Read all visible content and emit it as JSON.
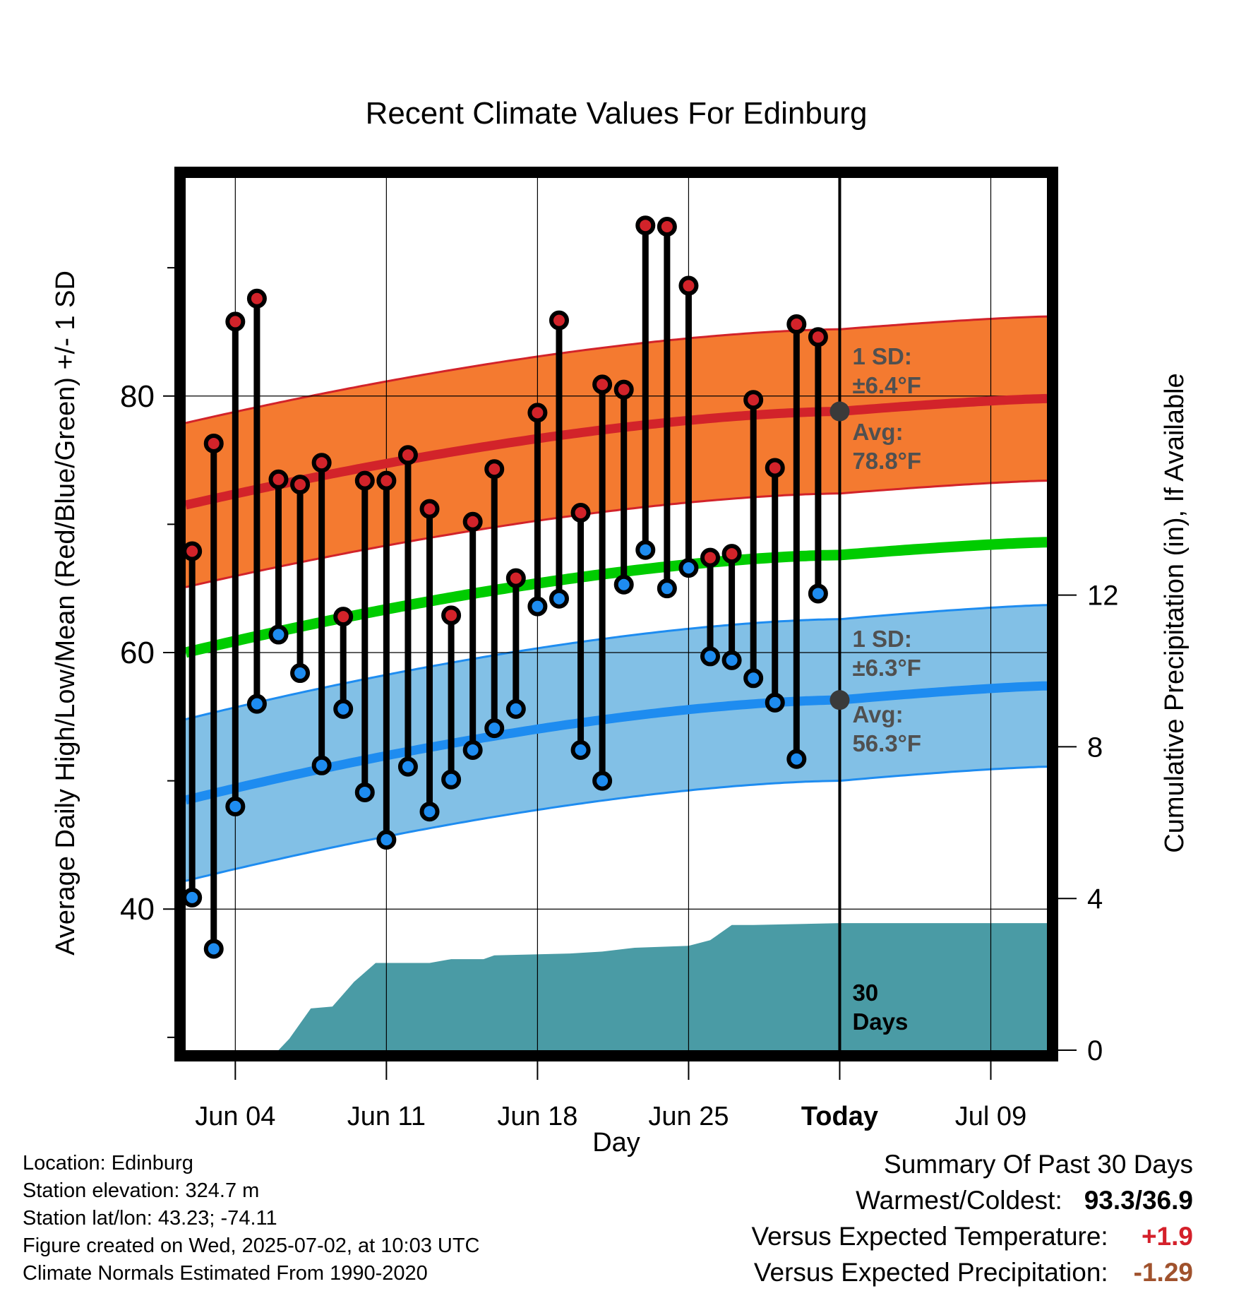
{
  "chart_data": {
    "type": "line",
    "title": "Recent Climate Values For Edinburg",
    "xlabel": "Day",
    "ylabel": "Average Daily High/Low/Mean (Red/Blue/Green) +/- 1 SD",
    "y2label": "Cumulative Precipitation (in), If Available",
    "x_ticks": [
      "Jun 04",
      "Jun 11",
      "Jun 18",
      "Jun 25",
      "Today",
      "Jul 09"
    ],
    "ylim": [
      29,
      97
    ],
    "y_ticks": [
      40,
      60,
      80
    ],
    "y2lim": [
      0,
      23
    ],
    "y2_ticks": [
      0,
      4,
      8,
      12
    ],
    "grid": true,
    "x_range_days": [
      -30.3,
      9.6
    ],
    "today_offset_days": 0,
    "daily_highs": [
      67.9,
      76.3,
      85.8,
      87.6,
      73.5,
      73.1,
      74.8,
      62.8,
      73.4,
      73.4,
      75.4,
      71.2,
      62.9,
      70.2,
      74.3,
      65.8,
      78.7,
      85.9,
      70.9,
      80.9,
      80.5,
      93.3,
      93.2,
      88.6,
      67.4,
      67.7,
      79.7,
      74.4,
      85.6,
      84.6
    ],
    "daily_lows": [
      40.9,
      36.9,
      48.0,
      56.0,
      61.4,
      58.4,
      51.2,
      55.6,
      49.1,
      45.4,
      51.1,
      47.6,
      50.1,
      52.4,
      54.1,
      55.6,
      63.6,
      64.2,
      52.4,
      50.0,
      65.3,
      68.0,
      65.0,
      66.6,
      59.7,
      59.4,
      58.0,
      56.1,
      51.7,
      64.6
    ],
    "normal_high": {
      "start": 71.5,
      "today": 78.8,
      "end": 79.8,
      "sd": 6.4
    },
    "normal_low": {
      "start": 48.5,
      "today": 56.3,
      "end": 57.4,
      "sd": 6.3
    },
    "normal_mean": {
      "start": 60.0,
      "today": 67.6,
      "end": 68.6
    },
    "precip_cumulative": [
      {
        "day": -26.0,
        "in": 0.0
      },
      {
        "day": -25.5,
        "in": 0.3
      },
      {
        "day": -24.5,
        "in": 1.1
      },
      {
        "day": -23.5,
        "in": 1.15
      },
      {
        "day": -22.5,
        "in": 1.8
      },
      {
        "day": -21.5,
        "in": 2.3
      },
      {
        "day": -19.0,
        "in": 2.3
      },
      {
        "day": -18.0,
        "in": 2.4
      },
      {
        "day": -16.5,
        "in": 2.4
      },
      {
        "day": -16.0,
        "in": 2.5
      },
      {
        "day": -12.5,
        "in": 2.55
      },
      {
        "day": -11.0,
        "in": 2.6
      },
      {
        "day": -9.5,
        "in": 2.7
      },
      {
        "day": -7.0,
        "in": 2.75
      },
      {
        "day": -6.0,
        "in": 2.9
      },
      {
        "day": -5.0,
        "in": 3.3
      },
      {
        "day": -4.0,
        "in": 3.3
      },
      {
        "day": 0.0,
        "in": 3.35
      },
      {
        "day": 9.6,
        "in": 3.35
      }
    ],
    "annotations": {
      "high_sd": [
        "1 SD:",
        "±6.4°F"
      ],
      "high_avg": [
        "Avg:",
        "78.8°F"
      ],
      "low_sd": [
        "1 SD:",
        "±6.3°F"
      ],
      "low_avg": [
        "Avg:",
        "56.3°F"
      ],
      "period": [
        "30",
        "Days"
      ]
    },
    "colors": {
      "high_band": "#f47a30",
      "high_line": "#d2232a",
      "low_band": "#82c0e6",
      "low_line": "#1e8cf0",
      "mean_line": "#00cc00",
      "precip_fill": "#4a9ba5",
      "high_marker": "#d2232a",
      "low_marker": "#1e8cf0",
      "annotation": "#505050"
    }
  },
  "info": {
    "location": "Location: Edinburg",
    "elevation": "Station elevation: 324.7 m",
    "latlon": "Station lat/lon: 43.23; -74.11",
    "created": "Figure created on Wed, 2025-07-02, at 10:03 UTC",
    "normals": "Climate Normals Estimated From 1990-2020"
  },
  "summary": {
    "heading": "Summary Of Past 30 Days",
    "warm_cold_label": "Warmest/Coldest:",
    "warm_cold_value": "93.3/36.9",
    "temp_label": "Versus Expected Temperature:",
    "temp_value": "+1.9",
    "precip_label": "Versus Expected Precipitation:",
    "precip_value": "-1.29"
  }
}
